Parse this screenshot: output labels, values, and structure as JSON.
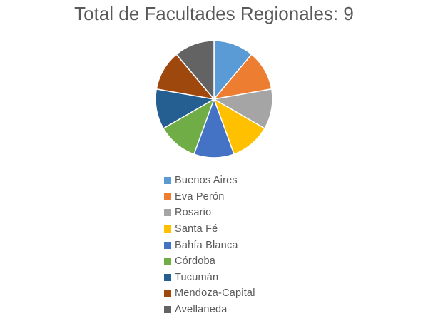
{
  "chart_data": {
    "type": "pie",
    "title": "Total de Facultades Regionales: 9",
    "categories": [
      "Buenos Aires",
      "Eva Perón",
      "Rosario",
      "Santa Fé",
      "Bahía Blanca",
      "Córdoba",
      "Tucumán",
      "Mendoza-Capital",
      "Avellaneda"
    ],
    "values": [
      1,
      1,
      1,
      1,
      1,
      1,
      1,
      1,
      1
    ],
    "colors": [
      "#5B9BD5",
      "#ED7D31",
      "#A5A5A5",
      "#FFC000",
      "#4472C4",
      "#70AD47",
      "#255E91",
      "#9E480E",
      "#636363"
    ],
    "legend_position": "bottom"
  }
}
